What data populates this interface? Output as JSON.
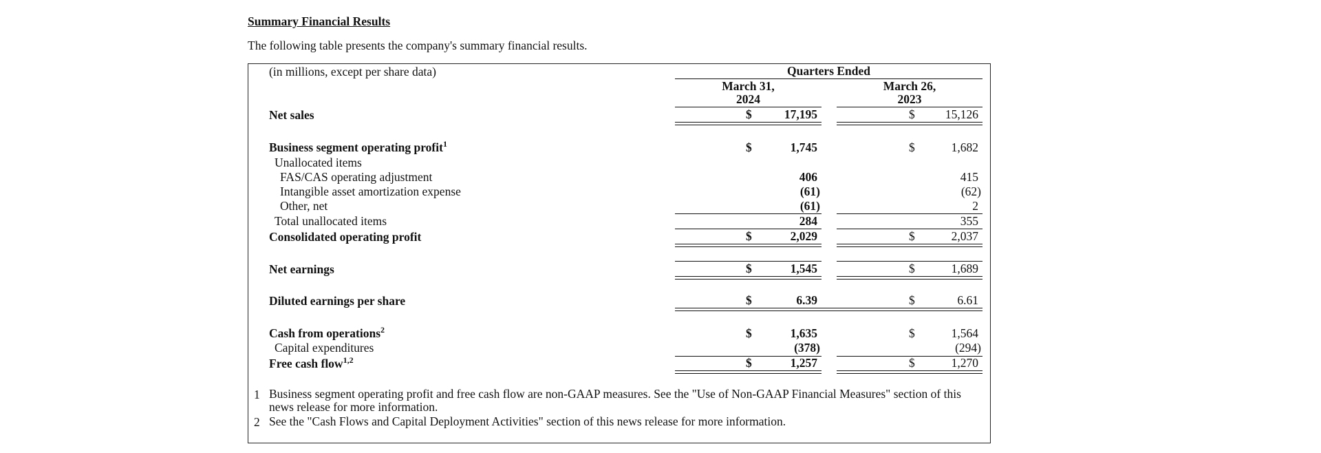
{
  "title": "Summary Financial Results",
  "subtitle": "The following table presents the company's summary financial results.",
  "table": {
    "units": "(in millions, except per share data)",
    "group_header": "Quarters Ended",
    "columns": [
      {
        "line1": "March 31,",
        "line2": "2024"
      },
      {
        "line1": "March 26,",
        "line2": "2023"
      }
    ],
    "currency": "$",
    "rows": [
      {
        "label": "Net sales",
        "sup": "",
        "c1": "17,195",
        "c2": "15,126"
      },
      {
        "label": "Business segment operating profit",
        "sup": "1",
        "c1": "1,745",
        "c2": "1,682"
      },
      {
        "label": "Unallocated items"
      },
      {
        "label": "FAS/CAS operating adjustment",
        "c1": "406",
        "c2": "415"
      },
      {
        "label": "Intangible asset amortization expense",
        "c1": "(61)",
        "c2": "(62)"
      },
      {
        "label": "Other, net",
        "c1": "(61)",
        "c2": "2"
      },
      {
        "label": "Total unallocated items",
        "c1": "284",
        "c2": "355"
      },
      {
        "label": "Consolidated operating profit",
        "c1": "2,029",
        "c2": "2,037"
      },
      {
        "label": "Net earnings",
        "c1": "1,545",
        "c2": "1,689"
      },
      {
        "label": "Diluted earnings per share",
        "c1": "6.39",
        "c2": "6.61"
      },
      {
        "label": "Cash from operations",
        "sup": "2",
        "c1": "1,635",
        "c2": "1,564"
      },
      {
        "label": "Capital expenditures",
        "c1": "(378)",
        "c2": "(294)"
      },
      {
        "label": "Free cash flow",
        "sup": "1,2",
        "c1": "1,257",
        "c2": "1,270"
      }
    ]
  },
  "footnotes": [
    {
      "num": "1",
      "text": "Business segment operating profit and free cash flow are non-GAAP measures. See the \"Use of Non-GAAP Financial Measures\" section of this news release for more information."
    },
    {
      "num": "2",
      "text": "See the \"Cash Flows and Capital Deployment Activities\" section of this news release for more information."
    }
  ]
}
